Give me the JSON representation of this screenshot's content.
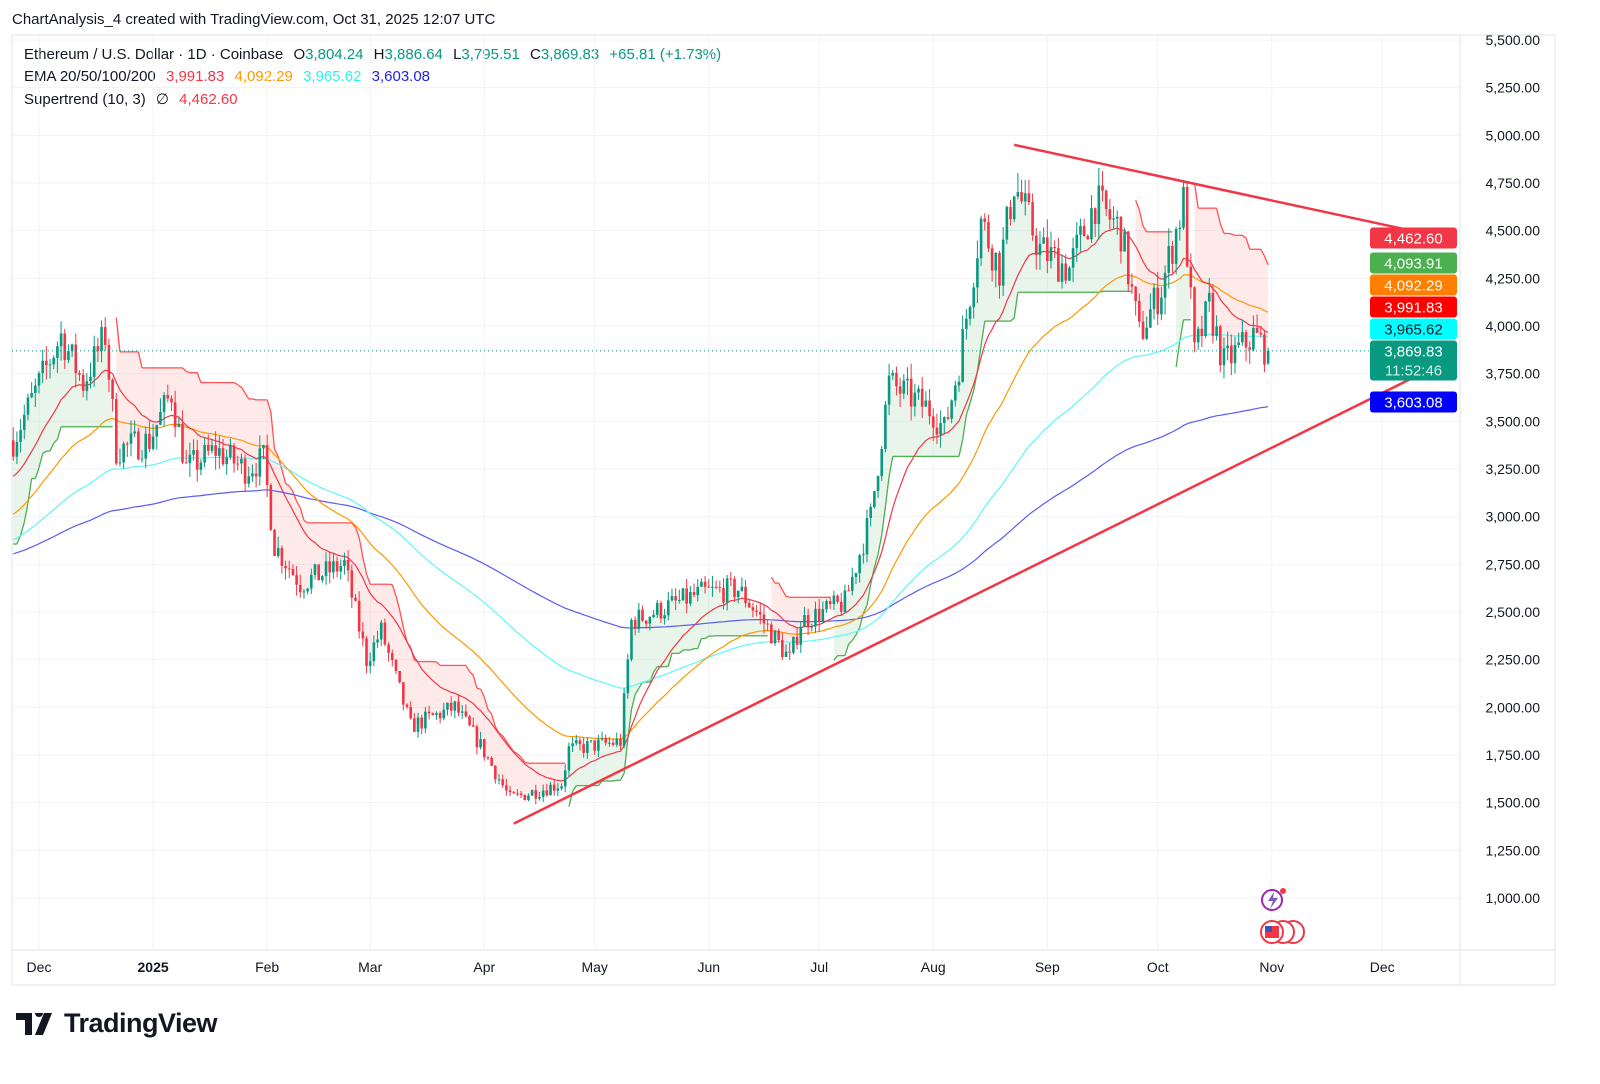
{
  "header": {
    "title": "ChartAnalysis_4 created with TradingView.com, Oct 31, 2025 12:07 UTC"
  },
  "legend": {
    "symbol": "Ethereum / U.S. Dollar · 1D · Coinbase",
    "o_label": "O",
    "o": "3,804.24",
    "h_label": "H",
    "h": "3,886.64",
    "l_label": "L",
    "l": "3,795.51",
    "c_label": "C",
    "c": "3,869.83",
    "change": "+65.81 (+1.73%)",
    "ema_label": "EMA 20/50/100/200",
    "ema20": "3,991.83",
    "ema50": "4,092.29",
    "ema100": "3,965.62",
    "ema200": "3,603.08",
    "st_label": "Supertrend (10, 3)",
    "st_icon": "∅",
    "st": "4,462.60"
  },
  "colors": {
    "up": "#089981",
    "down": "#f23645",
    "ema20": "#f23645",
    "ema50": "#ff9800",
    "ema100": "#5ef7f7",
    "ema200": "#5b5bf0",
    "st_up": "#4caf50",
    "st_down": "#ff5252",
    "trendline": "#f23645"
  },
  "badges": [
    {
      "text": "4,462.60",
      "bg": "#f23645",
      "fg": "#ffffff"
    },
    {
      "text": "4,093.91",
      "bg": "#4caf50",
      "fg": "#ffffff"
    },
    {
      "text": "4,092.29",
      "bg": "#ff7f00",
      "fg": "#ffffff"
    },
    {
      "text": "3,991.83",
      "bg": "#ff0000",
      "fg": "#ffffff"
    },
    {
      "text": "3,965.62",
      "bg": "#00ffff",
      "fg": "#131722"
    },
    {
      "text": "3,869.83",
      "sub": "11:52:46",
      "bg": "#089981",
      "fg": "#ffffff"
    },
    {
      "text": "3,603.08",
      "bg": "#0000ff",
      "fg": "#ffffff"
    }
  ],
  "logo": {
    "text": "TradingView"
  },
  "chart_data": {
    "type": "candlestick",
    "title": "Ethereum / U.S. Dollar · 1D · Coinbase",
    "x_unit": "days since 2024-12-01",
    "ylim": [
      800,
      5600
    ],
    "y_ticks": [
      1000,
      1250,
      1500,
      1750,
      2000,
      2250,
      2500,
      2750,
      3000,
      3250,
      3500,
      3750,
      4000,
      4250,
      4500,
      4750,
      5000,
      5250,
      5500
    ],
    "x_ticks": [
      {
        "label": "Dec",
        "day": 0
      },
      {
        "label": "2025",
        "day": 31,
        "bold": true
      },
      {
        "label": "Feb",
        "day": 62
      },
      {
        "label": "Mar",
        "day": 90
      },
      {
        "label": "Apr",
        "day": 121
      },
      {
        "label": "May",
        "day": 151
      },
      {
        "label": "Jun",
        "day": 182
      },
      {
        "label": "Jul",
        "day": 212
      },
      {
        "label": "Aug",
        "day": 243
      },
      {
        "label": "Sep",
        "day": 274
      },
      {
        "label": "Oct",
        "day": 304
      },
      {
        "label": "Nov",
        "day": 335
      },
      {
        "label": "Dec",
        "day": 365
      }
    ],
    "approx_close_path": [
      [
        -7,
        3400
      ],
      [
        6,
        3950
      ],
      [
        12,
        3700
      ],
      [
        18,
        3950
      ],
      [
        21,
        3350
      ],
      [
        30,
        3400
      ],
      [
        36,
        3650
      ],
      [
        40,
        3250
      ],
      [
        48,
        3350
      ],
      [
        56,
        3250
      ],
      [
        61,
        3300
      ],
      [
        64,
        2850
      ],
      [
        71,
        2650
      ],
      [
        83,
        2750
      ],
      [
        89,
        2250
      ],
      [
        93,
        2400
      ],
      [
        101,
        1900
      ],
      [
        113,
        2000
      ],
      [
        120,
        1800
      ],
      [
        128,
        1520
      ],
      [
        142,
        1600
      ],
      [
        144,
        1780
      ],
      [
        158,
        1820
      ],
      [
        161,
        2450
      ],
      [
        180,
        2600
      ],
      [
        190,
        2620
      ],
      [
        195,
        2500
      ],
      [
        204,
        2250
      ],
      [
        207,
        2450
      ],
      [
        219,
        2550
      ],
      [
        226,
        3000
      ],
      [
        231,
        3700
      ],
      [
        243,
        3550
      ],
      [
        246,
        3450
      ],
      [
        250,
        3800
      ],
      [
        256,
        4550
      ],
      [
        261,
        4300
      ],
      [
        265,
        4750
      ],
      [
        272,
        4400
      ],
      [
        280,
        4300
      ],
      [
        287,
        4650
      ],
      [
        294,
        4500
      ],
      [
        299,
        3950
      ],
      [
        305,
        4200
      ],
      [
        311,
        4650
      ],
      [
        314,
        3850
      ],
      [
        318,
        4100
      ],
      [
        322,
        3800
      ],
      [
        330,
        3950
      ],
      [
        334,
        3869.83
      ]
    ],
    "last": {
      "open": 3804.24,
      "high": 3886.64,
      "low": 3795.51,
      "close": 3869.83
    },
    "ema_seed": {
      "ema20": 3200,
      "ema50": 3000,
      "ema100": 2870,
      "ema200": 2800
    },
    "supertrend": {
      "period": 10,
      "multiplier": 3
    },
    "trendlines": [
      {
        "name": "resistance",
        "from": [
          265,
          4950
        ],
        "to": [
          385,
          4450
        ]
      },
      {
        "name": "support",
        "from": [
          129,
          1390
        ],
        "to": [
          385,
          3840
        ]
      }
    ]
  }
}
